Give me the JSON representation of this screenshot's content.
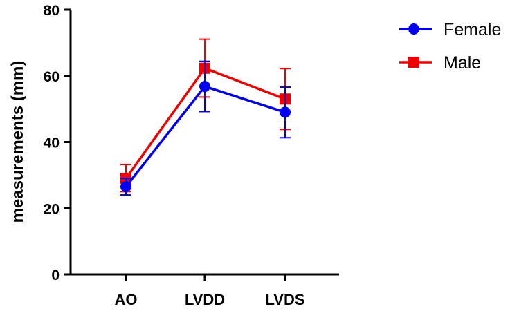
{
  "chart_data": {
    "type": "line",
    "title": "",
    "xlabel": "",
    "ylabel": "measurements (mm)",
    "ylim": [
      0,
      80
    ],
    "yticks": [
      0,
      20,
      40,
      60,
      80
    ],
    "categories": [
      "AO",
      "LVDD",
      "LVDS"
    ],
    "series": [
      {
        "name": "Female",
        "color": "#0000ee",
        "marker": "circle",
        "values": [
          26.5,
          56.8,
          49.0
        ],
        "err_low": [
          24.0,
          49.2,
          41.3
        ],
        "err_high": [
          29.0,
          64.4,
          56.6
        ]
      },
      {
        "name": "Male",
        "color": "#ee0000",
        "marker": "square",
        "values": [
          29.0,
          62.3,
          53.0
        ],
        "err_low": [
          25.0,
          53.6,
          43.8
        ],
        "err_high": [
          33.2,
          71.1,
          62.2
        ]
      }
    ],
    "legend_position": "top-right"
  }
}
